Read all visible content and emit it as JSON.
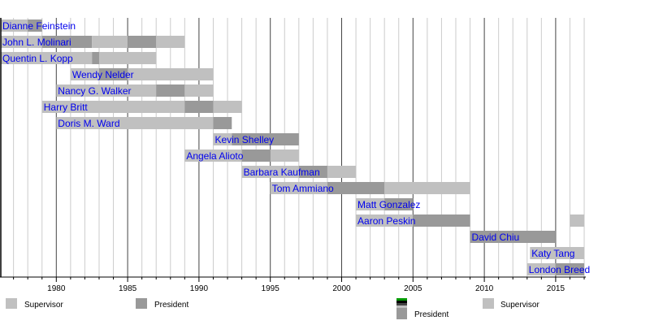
{
  "chart_data": {
    "type": "timeline",
    "xlim": [
      1976,
      2017
    ],
    "x_ticks": [
      1980,
      1985,
      1990,
      1995,
      2000,
      2005,
      2010,
      2015
    ],
    "grid": {
      "minor_every_years": 1,
      "major_every_years": 5
    },
    "colors": {
      "Supervisor": "#c0c0c0",
      "President": "#999999",
      "label": "#0000ee"
    },
    "legend": [
      {
        "label": "Supervisor",
        "color": "#c0c0c0"
      },
      {
        "label": "President",
        "color": "#999999"
      },
      {
        "label": "President",
        "color": "#999999",
        "stacked_colors": [
          "#009900",
          "#000000",
          "#444444",
          "#c0c0c0"
        ]
      },
      {
        "label": "Supervisor",
        "color": "#c0c0c0"
      }
    ],
    "rows": [
      {
        "name": "Dianne Feinstein",
        "segments": [
          [
            "Supervisor",
            1976,
            1978
          ],
          [
            "President",
            1978,
            1979
          ]
        ]
      },
      {
        "name": "John L. Molinari",
        "segments": [
          [
            "Supervisor",
            1976,
            1979
          ],
          [
            "President",
            1979,
            1982.5
          ],
          [
            "Supervisor",
            1982.5,
            1985
          ],
          [
            "President",
            1985,
            1987
          ],
          [
            "Supervisor",
            1987,
            1989
          ]
        ]
      },
      {
        "name": "Quentin L. Kopp",
        "segments": [
          [
            "Supervisor",
            1976,
            1982.5
          ],
          [
            "President",
            1982.5,
            1983
          ],
          [
            "Supervisor",
            1983,
            1987
          ]
        ]
      },
      {
        "name": "Wendy Nelder",
        "segments": [
          [
            "Supervisor",
            1981,
            1983
          ],
          [
            "President",
            1983,
            1985
          ],
          [
            "Supervisor",
            1985,
            1991
          ]
        ]
      },
      {
        "name": "Nancy G. Walker",
        "segments": [
          [
            "Supervisor",
            1980,
            1987
          ],
          [
            "President",
            1987,
            1989
          ],
          [
            "Supervisor",
            1989,
            1991
          ]
        ]
      },
      {
        "name": "Harry Britt",
        "segments": [
          [
            "Supervisor",
            1979,
            1989
          ],
          [
            "President",
            1989,
            1991
          ],
          [
            "Supervisor",
            1991,
            1993
          ]
        ]
      },
      {
        "name": "Doris M. Ward",
        "segments": [
          [
            "Supervisor",
            1980,
            1991
          ],
          [
            "President",
            1991,
            1992.3
          ]
        ]
      },
      {
        "name": "Kevin Shelley",
        "segments": [
          [
            "Supervisor",
            1991,
            1992.3
          ],
          [
            "President",
            1992.3,
            1997
          ]
        ]
      },
      {
        "name": "Angela Alioto",
        "segments": [
          [
            "Supervisor",
            1989,
            1993
          ],
          [
            "President",
            1993,
            1995
          ],
          [
            "Supervisor",
            1995,
            1997
          ]
        ]
      },
      {
        "name": "Barbara Kaufman",
        "segments": [
          [
            "Supervisor",
            1993,
            1997
          ],
          [
            "President",
            1997,
            1999
          ],
          [
            "Supervisor",
            1999,
            2001
          ]
        ]
      },
      {
        "name": "Tom Ammiano",
        "segments": [
          [
            "Supervisor",
            1995,
            1999
          ],
          [
            "President",
            1999,
            2003
          ],
          [
            "Supervisor",
            2003,
            2009
          ]
        ]
      },
      {
        "name": "Matt Gonzalez",
        "segments": [
          [
            "Supervisor",
            2001,
            2003
          ],
          [
            "President",
            2003,
            2005
          ]
        ]
      },
      {
        "name": "Aaron Peskin",
        "segments": [
          [
            "Supervisor",
            2001,
            2005
          ],
          [
            "President",
            2005,
            2009
          ],
          [
            "Supervisor",
            2016,
            2017
          ]
        ]
      },
      {
        "name": "David Chiu",
        "segments": [
          [
            "President",
            2009,
            2015
          ]
        ]
      },
      {
        "name": "Katy Tang",
        "segments": [
          [
            "Supervisor",
            2013.2,
            2017
          ]
        ]
      },
      {
        "name": "London Breed",
        "segments": [
          [
            "Supervisor",
            2013,
            2015
          ],
          [
            "President",
            2015,
            2017
          ]
        ]
      }
    ]
  }
}
